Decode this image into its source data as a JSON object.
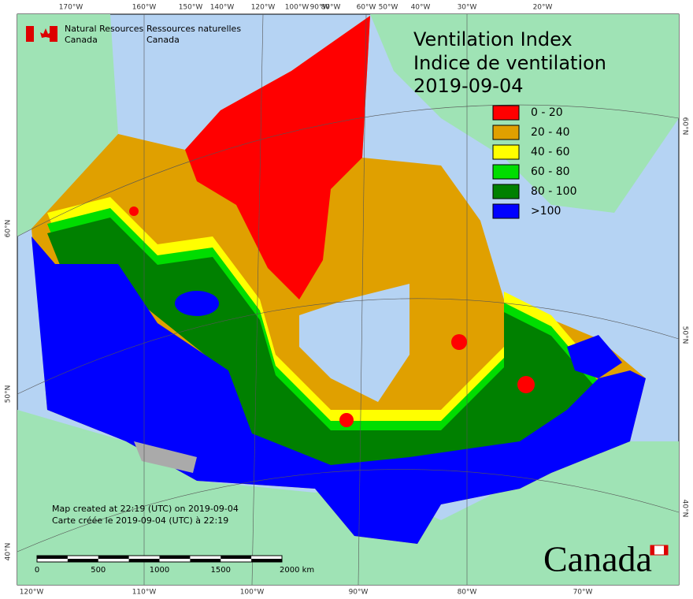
{
  "header": {
    "agency_en": [
      "Natural Resources",
      "Canada"
    ],
    "agency_fr": [
      "Ressources naturelles",
      "Canada"
    ]
  },
  "title": {
    "en": "Ventilation Index",
    "fr": "Indice de ventilation",
    "date": "2019-09-04"
  },
  "legend": [
    {
      "label": "0 - 20",
      "color": "#ff0000"
    },
    {
      "label": "20 - 40",
      "color": "#e0a000"
    },
    {
      "label": "40 - 60",
      "color": "#ffff00"
    },
    {
      "label": "60 - 80",
      "color": "#00dd00"
    },
    {
      "label": "80 - 100",
      "color": "#008000"
    },
    {
      "label": ">100",
      "color": "#0000ff"
    }
  ],
  "graticule": {
    "top": [
      "170°W",
      "160°W",
      "150°W",
      "140°W",
      "120°W",
      "100°W",
      "90°W",
      "80°W",
      "60°W",
      "50°W",
      "40°W",
      "30°W",
      "20°W"
    ],
    "bottom": [
      "120°W",
      "110°W",
      "100°W",
      "90°W",
      "80°W",
      "70°W"
    ],
    "left": [
      "60°N",
      "50°N",
      "40°N"
    ],
    "right": [
      "60°N",
      "50°N",
      "40°N"
    ]
  },
  "footnote": [
    "Map created at 22:19 (UTC) on 2019-09-04",
    "Carte créée le 2019-09-04 (UTC) à 22:19"
  ],
  "scale_bar": {
    "labels": [
      "0",
      "500",
      "1000",
      "1500",
      "2000 km"
    ]
  },
  "wordmark": "Canada"
}
